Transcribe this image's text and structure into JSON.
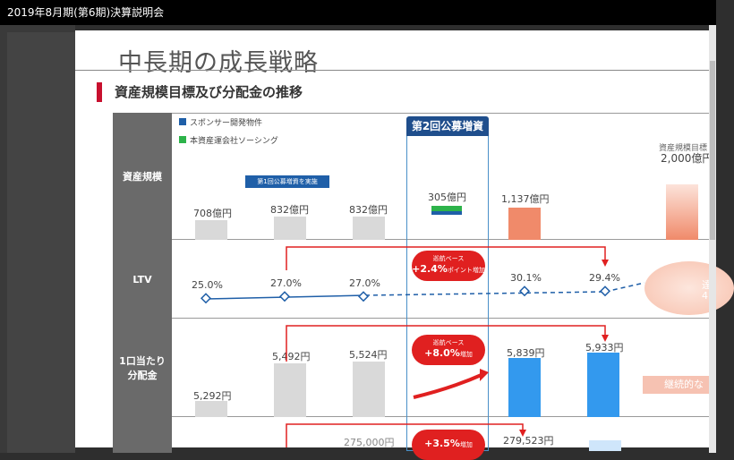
{
  "window": {
    "title": "2019年8月期(第6期)決算説明会"
  },
  "slide": {
    "title": "中長期の成長戦略",
    "subtitle": "資産規模目標及び分配金の推移",
    "legend": [
      {
        "label": "スポンサー開発物件",
        "color": "#1f5fa8"
      },
      {
        "label": "本資産運会社ソーシング",
        "color": "#2db34a"
      }
    ],
    "highlight_header": "第2回公募増資",
    "rows": {
      "asset": "資産規模",
      "ltv": "LTV",
      "dist": "1口当たり\n分配金"
    },
    "asset_values": [
      "708億円",
      "832億円",
      "832億円",
      "305億円",
      "1,137億円"
    ],
    "asset_target_label": "資産規模目標",
    "asset_target_value": "2,000億円",
    "banner": "第1回公募増資を実施",
    "ltv_values": [
      "25.0%",
      "27.0%",
      "27.0%",
      "30.1%",
      "29.4%"
    ],
    "ltv_cut": "4",
    "ltv_cut2": "達",
    "pill_ltv": {
      "line1": "巡航ベース",
      "line2": "+2.4%",
      "line2_suffix": "ポイント増加"
    },
    "dist_values": [
      "5,292円",
      "5,492円",
      "5,524円",
      "5,839円",
      "5,933円"
    ],
    "pill_dist": {
      "line1": "巡航ベース",
      "line2": "+8.0%",
      "line2_suffix": "増加"
    },
    "continue_label": "継続的な",
    "bottom_values": [
      "275,000円",
      "279,523円"
    ],
    "pill_bottom": {
      "line2": "+3.5%",
      "line2_suffix": "増加"
    },
    "colors": {
      "accent_red": "#e02020",
      "navy": "#1f4e8c",
      "blue_bar": "#3399ee",
      "orange_bar": "#f08a6a",
      "gray_bar": "#d9d9d9"
    }
  }
}
